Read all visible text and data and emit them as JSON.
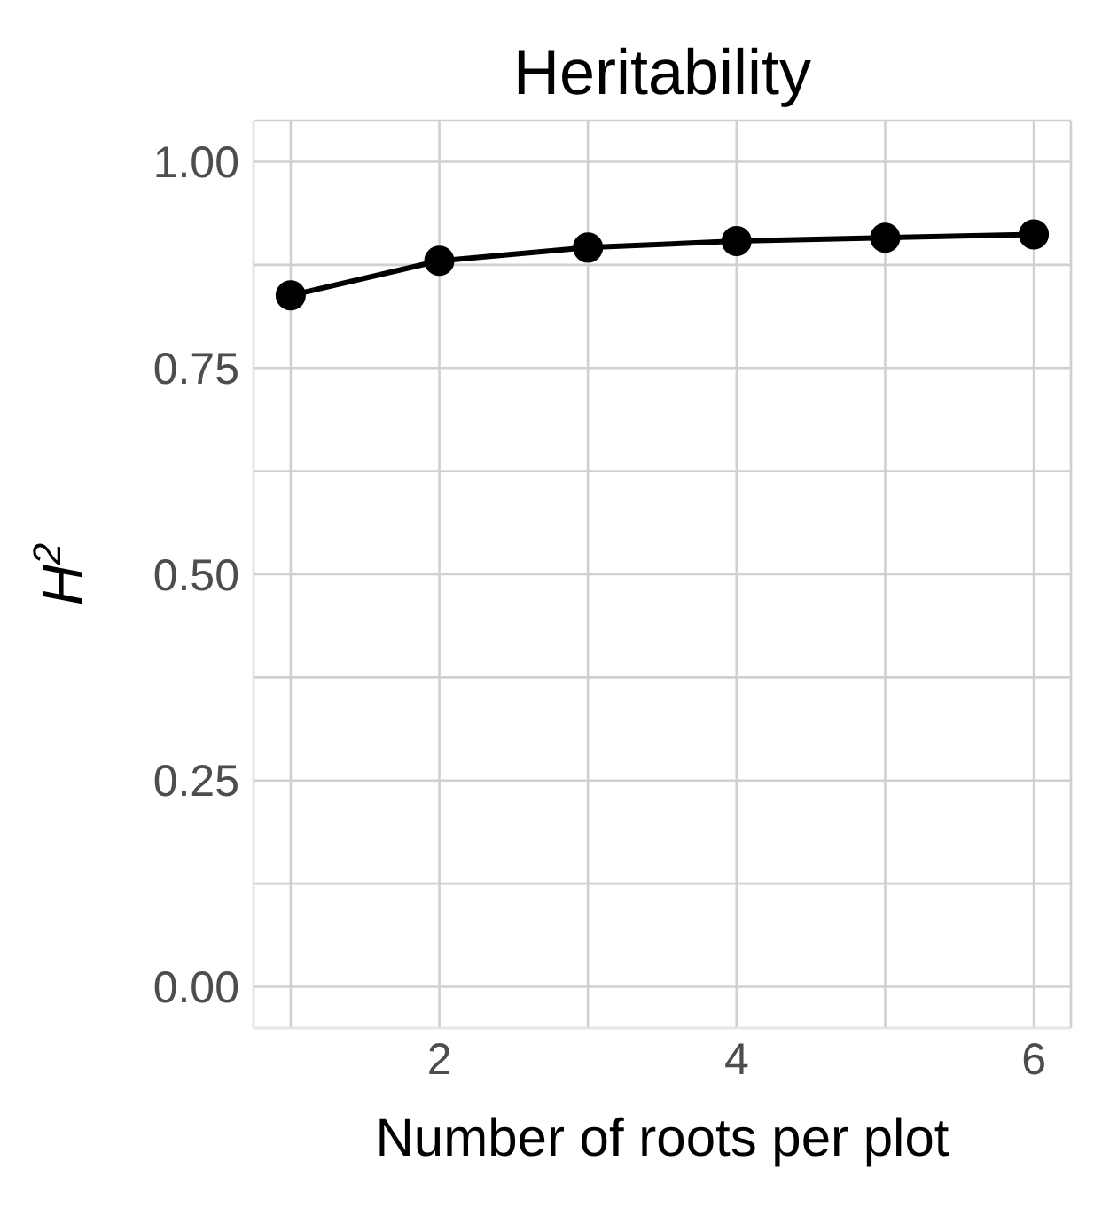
{
  "chart_data": {
    "type": "line",
    "title": "Heritability",
    "xlabel": "Number of roots per plot",
    "ylabel": "H$^{2}$",
    "x": [
      1,
      2,
      3,
      4,
      5,
      6
    ],
    "series": [
      {
        "color": "#000000",
        "values": [
          0.838,
          0.88,
          0.896,
          0.904,
          0.908,
          0.912
        ]
      }
    ],
    "xlim": [
      0.75,
      6.25
    ],
    "xticks": [
      {
        "value": 1,
        "label": null
      },
      2,
      {
        "value": 3,
        "label": null
      },
      4,
      {
        "value": 5,
        "label": null
      },
      6
    ],
    "ylim": [
      -0.05,
      1.05
    ],
    "yticks": [
      {
        "value": 0,
        "label": "0.00"
      },
      {
        "value": 0.125,
        "label": null
      },
      {
        "value": 0.25,
        "label": "0.25"
      },
      {
        "value": 0.375,
        "label": null
      },
      {
        "value": 0.5,
        "label": "0.50"
      },
      {
        "value": 0.625,
        "label": null
      },
      {
        "value": 0.75,
        "label": "0.75"
      },
      {
        "value": 0.875,
        "label": null
      },
      {
        "value": 1,
        "label": "1.00"
      }
    ],
    "grid": true,
    "marker": "circle",
    "line_style": "solid"
  }
}
